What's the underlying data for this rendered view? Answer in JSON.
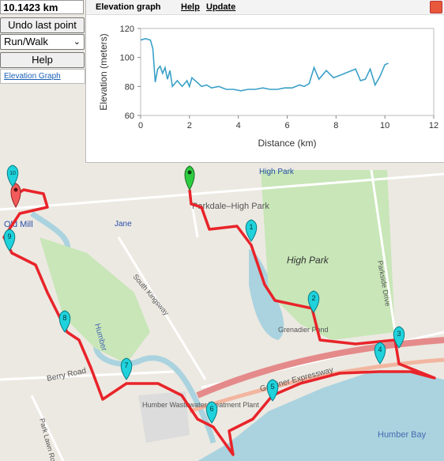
{
  "controls": {
    "distance": "10.1423 km",
    "undo_label": "Undo last point",
    "activity_value": "Run/Walk",
    "help_label": "Help",
    "elevation_link": "Elevation Graph"
  },
  "elevation_panel": {
    "title": "Elevation graph",
    "menu_help": "Help",
    "menu_update": "Update"
  },
  "chart_data": {
    "type": "line",
    "xlabel": "Distance (km)",
    "ylabel": "Elevation (meters)",
    "xlim": [
      0,
      12
    ],
    "ylim": [
      60,
      120
    ],
    "x_ticks": [
      "0",
      "2",
      "4",
      "6",
      "8",
      "10",
      "12"
    ],
    "y_ticks": [
      "60",
      "80",
      "100",
      "120"
    ],
    "color": "#3aa0c8",
    "grid": false,
    "x": [
      0,
      0.2,
      0.4,
      0.5,
      0.6,
      0.7,
      0.8,
      0.9,
      1.0,
      1.1,
      1.2,
      1.3,
      1.5,
      1.7,
      1.9,
      2.0,
      2.1,
      2.3,
      2.5,
      2.7,
      2.9,
      3.2,
      3.5,
      3.8,
      4.1,
      4.4,
      4.7,
      5.0,
      5.3,
      5.6,
      5.9,
      6.2,
      6.5,
      6.7,
      6.9,
      7.1,
      7.3,
      7.6,
      7.9,
      8.2,
      8.5,
      8.8,
      9.0,
      9.2,
      9.4,
      9.6,
      9.8,
      10.0,
      10.14
    ],
    "y": [
      112,
      113,
      112,
      106,
      83,
      92,
      94,
      89,
      93,
      85,
      91,
      80,
      84,
      80,
      84,
      80,
      86,
      83,
      80,
      81,
      79,
      80,
      78,
      78,
      77,
      78,
      78,
      79,
      78,
      78,
      79,
      79,
      81,
      80,
      82,
      93,
      85,
      91,
      86,
      88,
      90,
      92,
      84,
      85,
      92,
      81,
      87,
      95,
      96
    ]
  },
  "map": {
    "labels": [
      "Old Mill",
      "Jane",
      "Parkdale–High Park",
      "High Park",
      "Parkside Drive",
      "South Kingsway",
      "Humber",
      "Grenadier Pond",
      "Berry Road",
      "Humber Wastewater Treatment Plant",
      "Gardiner Expressway",
      "Humber Bay",
      "Park Lawn Road",
      "High Park"
    ],
    "markers": [
      "10",
      "1",
      "2",
      "3",
      "4",
      "5",
      "6",
      "7",
      "8",
      "9"
    ]
  }
}
